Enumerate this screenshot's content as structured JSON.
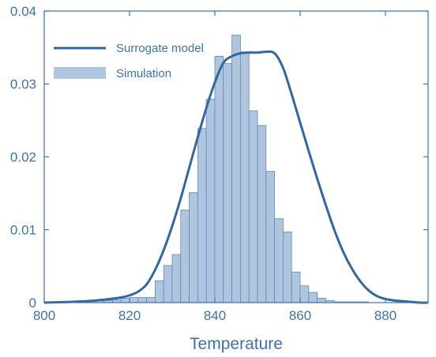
{
  "chart_data": {
    "type": "bar",
    "xlabel": "Temperature",
    "ylabel": "",
    "xlim": [
      800,
      890
    ],
    "ylim": [
      0,
      0.04
    ],
    "x_ticks": [
      "800",
      "820",
      "840",
      "860",
      "880"
    ],
    "y_ticks": [
      "0",
      "0.01",
      "0.02",
      "0.03",
      "0.04"
    ],
    "grid": false,
    "legend": {
      "placement": "top-left",
      "entries": [
        "Surrogate model",
        "Simulation"
      ]
    },
    "colors": {
      "axis": "#3f72a8",
      "bar_fill": "#aec5dd",
      "bar_edge": "#5d8ab9",
      "line": "#3267a0"
    },
    "series": [
      {
        "name": "Simulation",
        "kind": "histogram",
        "bin_width": 2,
        "bin_starts": [
          806,
          808,
          810,
          812,
          814,
          816,
          818,
          820,
          822,
          824,
          826,
          828,
          830,
          832,
          834,
          836,
          838,
          840,
          842,
          844,
          846,
          848,
          850,
          852,
          854,
          856,
          858,
          860,
          862,
          864,
          866,
          868,
          870,
          872,
          874,
          876,
          878,
          880,
          882,
          884,
          886
        ],
        "values": [
          0.0001,
          0.0001,
          0.0002,
          0.0003,
          0.0003,
          0.0004,
          0.0006,
          0.0007,
          0.0007,
          0.0007,
          0.003,
          0.0051,
          0.0066,
          0.0127,
          0.0151,
          0.0239,
          0.0279,
          0.0338,
          0.0328,
          0.0367,
          0.0344,
          0.0263,
          0.0243,
          0.018,
          0.0115,
          0.0097,
          0.0042,
          0.0023,
          0.0014,
          0.0006,
          0.0003,
          0.0001,
          0.0001,
          0.0001,
          0.0001,
          0.0,
          0.0,
          0.0,
          0.0,
          0.0,
          0.0
        ]
      },
      {
        "name": "Surrogate model",
        "kind": "line",
        "x": [
          800,
          806,
          810,
          814,
          818,
          820,
          822,
          824,
          826,
          828,
          830,
          832,
          834,
          836,
          838,
          840,
          842,
          844,
          846,
          848,
          850,
          852,
          854,
          856,
          858,
          860,
          862,
          864,
          866,
          868,
          870,
          872,
          874,
          876,
          878,
          880,
          882,
          884,
          886,
          888,
          890
        ],
        "y": [
          0.0,
          0.0001,
          0.0002,
          0.0004,
          0.0007,
          0.001,
          0.0015,
          0.0025,
          0.0045,
          0.0072,
          0.0105,
          0.0143,
          0.0185,
          0.0227,
          0.0267,
          0.0302,
          0.0329,
          0.0338,
          0.0342,
          0.0343,
          0.0343,
          0.0344,
          0.0342,
          0.0322,
          0.0286,
          0.0247,
          0.0208,
          0.017,
          0.0134,
          0.01,
          0.0071,
          0.0048,
          0.003,
          0.0017,
          0.0009,
          0.0005,
          0.0003,
          0.0002,
          0.0001,
          0.0,
          0.0
        ]
      }
    ]
  }
}
